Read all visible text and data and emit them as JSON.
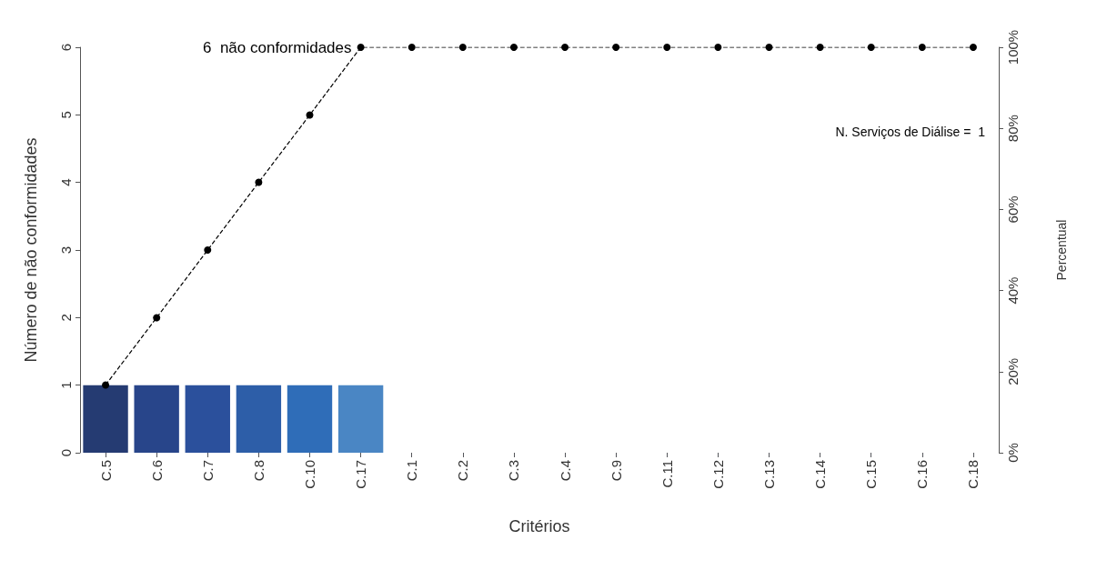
{
  "chart_data": {
    "type": "bar",
    "xlabel": "Critérios",
    "ylabel": "Número de não conformidades",
    "y2label": "Percentual",
    "categories": [
      "C.5",
      "C.6",
      "C.7",
      "C.8",
      "C.10",
      "C.17",
      "C.1",
      "C.2",
      "C.3",
      "C.4",
      "C.9",
      "C.11",
      "C.12",
      "C.13",
      "C.14",
      "C.15",
      "C.16",
      "C.18"
    ],
    "series": [
      {
        "colors": [
          "#253b72",
          "#28458a",
          "#2b509c",
          "#2d5ea8",
          "#2f6db8",
          "#4a86c4",
          "#4a86c4",
          "#4a86c4",
          "#4a86c4",
          "#4a86c4",
          "#4a86c4",
          "#4a86c4",
          "#4a86c4",
          "#4a86c4",
          "#4a86c4",
          "#4a86c4",
          "#4a86c4",
          "#4a86c4"
        ],
        "values": [
          1,
          1,
          1,
          1,
          1,
          1,
          0,
          0,
          0,
          0,
          0,
          0,
          0,
          0,
          0,
          0,
          0,
          0
        ]
      },
      {
        "type": "line",
        "axis": "y2",
        "color": "#000000",
        "marker": "circle",
        "line_style": "dashed",
        "values": [
          16.7,
          33.3,
          50,
          66.7,
          83.3,
          100,
          100,
          100,
          100,
          100,
          100,
          100,
          100,
          100,
          100,
          100,
          100,
          100
        ]
      }
    ],
    "ylim": [
      0,
      6
    ],
    "yticks": [
      0,
      1,
      2,
      3,
      4,
      5,
      6
    ],
    "y2lim": [
      0,
      100
    ],
    "y2ticks": [
      {
        "value": 0,
        "label": "0%"
      },
      {
        "value": 20,
        "label": "20%"
      },
      {
        "value": 40,
        "label": "40%"
      },
      {
        "value": 60,
        "label": "60%"
      },
      {
        "value": 80,
        "label": "80%"
      },
      {
        "value": 100,
        "label": "100%"
      }
    ],
    "annotations": [
      "6  não conformidades",
      "N. Serviços de Diálise =  1"
    ]
  }
}
